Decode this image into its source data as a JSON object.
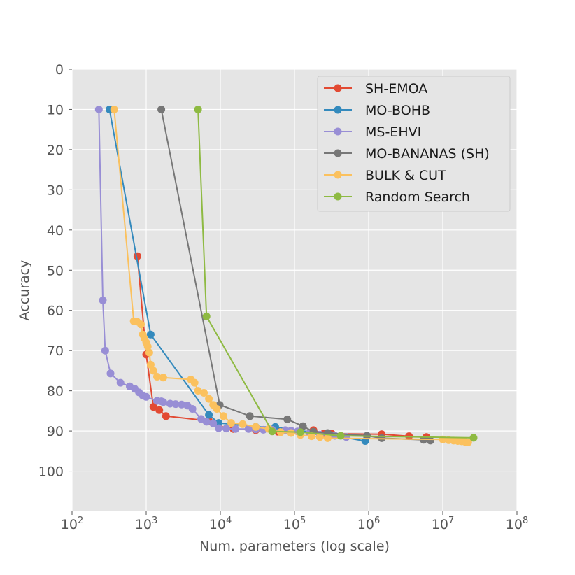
{
  "chart_data": {
    "type": "line",
    "title": "",
    "xlabel": "Num. parameters (log scale)",
    "ylabel": "Accuracy",
    "x_scale": "log",
    "xlim": [
      100,
      100000000
    ],
    "ylim": [
      110,
      0
    ],
    "y_inverted": true,
    "grid": true,
    "legend_position": "top-right",
    "x_ticks": [
      {
        "value": 100,
        "base": "10",
        "exp": "2"
      },
      {
        "value": 1000,
        "base": "10",
        "exp": "3"
      },
      {
        "value": 10000,
        "base": "10",
        "exp": "4"
      },
      {
        "value": 100000,
        "base": "10",
        "exp": "5"
      },
      {
        "value": 1000000,
        "base": "10",
        "exp": "6"
      },
      {
        "value": 10000000,
        "base": "10",
        "exp": "7"
      },
      {
        "value": 100000000,
        "base": "10",
        "exp": "8"
      }
    ],
    "y_ticks": [
      "0",
      "10",
      "20",
      "30",
      "40",
      "50",
      "60",
      "70",
      "80",
      "90",
      "100"
    ],
    "series": [
      {
        "name": "SH-EMOA",
        "color": "#e24a33",
        "x": [
          760,
          1000,
          1250,
          1500,
          1850,
          7000,
          9500,
          15000,
          30000,
          60000,
          90000,
          120000,
          180000,
          250000,
          320000,
          1500000,
          3500000,
          6000000
        ],
        "y": [
          46.5,
          71,
          84,
          84.8,
          86.3,
          87.5,
          88.8,
          89.5,
          89.8,
          90.2,
          90.4,
          90.5,
          89.8,
          90.6,
          90.7,
          90.8,
          91.3,
          91.5
        ]
      },
      {
        "name": "MO-BOHB",
        "color": "#348abd",
        "x": [
          320,
          1150,
          7000,
          9500,
          30000,
          55000,
          300000,
          900000
        ],
        "y": [
          10,
          66,
          86,
          88,
          89,
          89,
          91,
          92.5
        ]
      },
      {
        "name": "MS-EHVI",
        "color": "#988ed5",
        "x": [
          230,
          260,
          280,
          330,
          450,
          600,
          700,
          800,
          900,
          1000,
          1400,
          1600,
          1700,
          2100,
          2500,
          3000,
          3600,
          4200,
          5500,
          6500,
          8000,
          9500,
          12000,
          16000,
          24000,
          30000,
          38000,
          50000,
          75000,
          90000,
          110000,
          160000,
          220000,
          350000,
          500000
        ],
        "y": [
          10,
          57.5,
          70,
          75.7,
          78,
          78.9,
          79.5,
          80.4,
          81.2,
          81.5,
          82.5,
          82.6,
          82.8,
          83.2,
          83.3,
          83.4,
          83.7,
          84.5,
          87,
          87.7,
          88.1,
          89.3,
          89.4,
          89.5,
          89.5,
          89.6,
          89.7,
          89.7,
          89.8,
          89.9,
          90.1,
          90.5,
          90.9,
          91.2,
          91.5
        ]
      },
      {
        "name": "MO-BANANAS (SH)",
        "color": "#777777",
        "x": [
          1600,
          9800,
          25000,
          80000,
          130000,
          180000,
          280000,
          950000,
          1500000,
          5500000,
          6800000
        ],
        "y": [
          10,
          83.5,
          86.3,
          87.1,
          88.8,
          90.2,
          90.5,
          91.2,
          91.8,
          92.2,
          92.4
        ]
      },
      {
        "name": "BULK & CUT",
        "color": "#fbc15e",
        "x": [
          370,
          680,
          750,
          850,
          900,
          950,
          1000,
          1050,
          1100,
          1150,
          1250,
          1400,
          1700,
          4000,
          4500,
          5000,
          6000,
          7000,
          8000,
          9000,
          11000,
          14000,
          20000,
          30000,
          45000,
          65000,
          90000,
          120000,
          170000,
          220000,
          280000,
          10000000,
          12000000,
          14000000,
          16000000,
          18000000,
          20000000,
          22000000
        ],
        "y": [
          10,
          62.7,
          62.8,
          63.5,
          66,
          67,
          68,
          69,
          70.5,
          73.5,
          75,
          76.5,
          76.7,
          77.2,
          78,
          80,
          80.5,
          82,
          83.5,
          84.5,
          86.3,
          88,
          88.3,
          89,
          89.5,
          90.3,
          90.5,
          91,
          91.3,
          91.5,
          91.8,
          92.1,
          92.3,
          92.4,
          92.5,
          92.6,
          92.7,
          92.8
        ]
      },
      {
        "name": "Random Search",
        "color": "#8eba42",
        "x": [
          5000,
          6500,
          50000,
          120000,
          420000,
          26000000
        ],
        "y": [
          10,
          61.5,
          90.1,
          90.3,
          91.2,
          91.7
        ]
      }
    ]
  }
}
